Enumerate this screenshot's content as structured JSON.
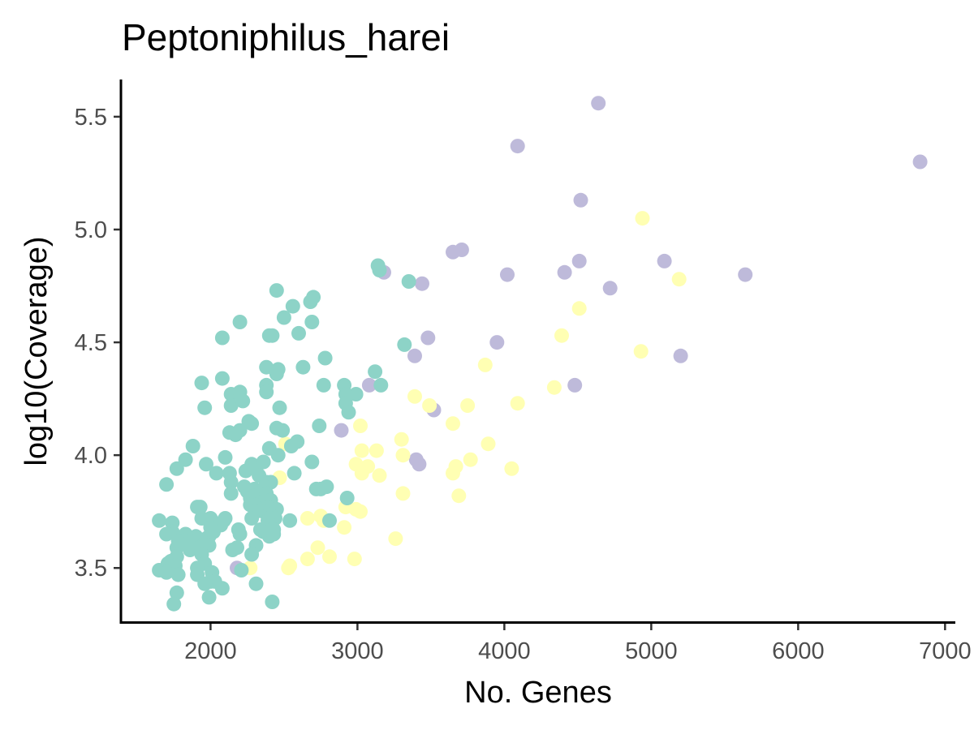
{
  "chart_data": {
    "type": "scatter",
    "title": "Peptoniphilus_harei",
    "xlabel": "No. Genes",
    "ylabel": "log10(Coverage)",
    "xlim": [
      1390,
      7070
    ],
    "ylim": [
      3.26,
      5.665
    ],
    "xticks": [
      2000,
      3000,
      4000,
      5000,
      6000,
      7000
    ],
    "yticks": [
      3.5,
      4.0,
      4.5,
      5.0,
      5.5
    ],
    "grid": false,
    "legend": "none",
    "colors": {
      "teal": "#8dd3c7",
      "yellow": "#ffffb3",
      "purple": "#bebada"
    },
    "series": [
      {
        "color": "#bebada",
        "points": [
          [
            4640,
            5.56
          ],
          [
            4090,
            5.37
          ],
          [
            6830,
            5.3
          ],
          [
            4520,
            5.13
          ],
          [
            3710,
            4.91
          ],
          [
            3650,
            4.9
          ],
          [
            5090,
            4.86
          ],
          [
            4510,
            4.86
          ],
          [
            4410,
            4.81
          ],
          [
            4020,
            4.8
          ],
          [
            5640,
            4.8
          ],
          [
            3180,
            4.81
          ],
          [
            3440,
            4.76
          ],
          [
            4720,
            4.74
          ],
          [
            3480,
            4.52
          ],
          [
            3950,
            4.5
          ],
          [
            3390,
            4.44
          ],
          [
            5200,
            4.44
          ],
          [
            4480,
            4.31
          ],
          [
            3080,
            4.31
          ],
          [
            3520,
            4.2
          ],
          [
            2890,
            4.11
          ],
          [
            3420,
            3.96
          ],
          [
            3400,
            3.98
          ],
          [
            2180,
            3.5
          ]
        ]
      },
      {
        "color": "#ffffb3",
        "points": [
          [
            4940,
            5.05
          ],
          [
            5190,
            4.78
          ],
          [
            4510,
            4.65
          ],
          [
            4390,
            4.53
          ],
          [
            4930,
            4.46
          ],
          [
            3870,
            4.4
          ],
          [
            4340,
            4.3
          ],
          [
            3390,
            4.26
          ],
          [
            4090,
            4.23
          ],
          [
            3750,
            4.22
          ],
          [
            3490,
            4.22
          ],
          [
            3650,
            4.14
          ],
          [
            3020,
            4.13
          ],
          [
            3300,
            4.07
          ],
          [
            3890,
            4.05
          ],
          [
            3130,
            4.02
          ],
          [
            3030,
            4.02
          ],
          [
            3310,
            4.0
          ],
          [
            3770,
            3.98
          ],
          [
            2990,
            3.96
          ],
          [
            3070,
            3.95
          ],
          [
            3670,
            3.95
          ],
          [
            4050,
            3.94
          ],
          [
            3650,
            3.92
          ],
          [
            3150,
            3.91
          ],
          [
            3030,
            3.92
          ],
          [
            2470,
            3.9
          ],
          [
            3310,
            3.83
          ],
          [
            3690,
            3.82
          ],
          [
            2920,
            3.77
          ],
          [
            2990,
            3.76
          ],
          [
            3020,
            3.75
          ],
          [
            2750,
            3.73
          ],
          [
            2660,
            3.72
          ],
          [
            2770,
            3.71
          ],
          [
            2910,
            3.68
          ],
          [
            3260,
            3.63
          ],
          [
            2730,
            3.59
          ],
          [
            2810,
            3.55
          ],
          [
            2660,
            3.54
          ],
          [
            2980,
            3.54
          ],
          [
            2540,
            3.51
          ],
          [
            2530,
            3.5
          ],
          [
            2270,
            3.5
          ],
          [
            2510,
            4.05
          ]
        ]
      },
      {
        "color": "#8dd3c7",
        "points": [
          [
            3140,
            4.84
          ],
          [
            3150,
            4.82
          ],
          [
            3350,
            4.77
          ],
          [
            2450,
            4.73
          ],
          [
            2700,
            4.7
          ],
          [
            2680,
            4.68
          ],
          [
            2560,
            4.66
          ],
          [
            2500,
            4.61
          ],
          [
            2200,
            4.59
          ],
          [
            2690,
            4.59
          ],
          [
            2600,
            4.54
          ],
          [
            2400,
            4.53
          ],
          [
            2420,
            4.53
          ],
          [
            2080,
            4.52
          ],
          [
            3320,
            4.49
          ],
          [
            2780,
            4.43
          ],
          [
            2380,
            4.39
          ],
          [
            2460,
            4.38
          ],
          [
            2630,
            4.39
          ],
          [
            2450,
            4.36
          ],
          [
            3120,
            4.37
          ],
          [
            1940,
            4.32
          ],
          [
            2080,
            4.34
          ],
          [
            2380,
            4.31
          ],
          [
            2770,
            4.31
          ],
          [
            2910,
            4.31
          ],
          [
            3160,
            4.31
          ],
          [
            2380,
            4.28
          ],
          [
            2140,
            4.27
          ],
          [
            2200,
            4.28
          ],
          [
            2990,
            4.27
          ],
          [
            2920,
            4.27
          ],
          [
            2140,
            4.22
          ],
          [
            2220,
            4.24
          ],
          [
            1960,
            4.21
          ],
          [
            2470,
            4.21
          ],
          [
            2920,
            4.23
          ],
          [
            2940,
            4.19
          ],
          [
            2260,
            4.15
          ],
          [
            2280,
            4.14
          ],
          [
            2740,
            4.13
          ],
          [
            2450,
            4.12
          ],
          [
            2130,
            4.1
          ],
          [
            2170,
            4.09
          ],
          [
            2490,
            4.11
          ],
          [
            2200,
            4.11
          ],
          [
            2590,
            4.06
          ],
          [
            1880,
            4.04
          ],
          [
            2400,
            4.03
          ],
          [
            2550,
            4.04
          ],
          [
            2100,
            3.99
          ],
          [
            1970,
            3.96
          ],
          [
            2280,
            3.96
          ],
          [
            2460,
            4.0
          ],
          [
            2690,
            3.97
          ],
          [
            2310,
            3.94
          ],
          [
            2360,
            3.97
          ],
          [
            1830,
            3.98
          ],
          [
            1770,
            3.94
          ],
          [
            2040,
            3.92
          ],
          [
            2130,
            3.92
          ],
          [
            2240,
            3.93
          ],
          [
            2570,
            3.92
          ],
          [
            2330,
            3.91
          ],
          [
            2380,
            3.88
          ],
          [
            2410,
            3.88
          ],
          [
            2300,
            3.85
          ],
          [
            2140,
            3.88
          ],
          [
            2370,
            3.86
          ],
          [
            2230,
            3.86
          ],
          [
            2250,
            3.84
          ],
          [
            2720,
            3.85
          ],
          [
            2750,
            3.85
          ],
          [
            2790,
            3.86
          ],
          [
            1700,
            3.87
          ],
          [
            2300,
            3.82
          ],
          [
            2270,
            3.81
          ],
          [
            2140,
            3.83
          ],
          [
            2930,
            3.81
          ],
          [
            2380,
            3.83
          ],
          [
            2410,
            3.8
          ],
          [
            2340,
            3.79
          ],
          [
            2300,
            3.78
          ],
          [
            2270,
            3.78
          ],
          [
            2390,
            3.77
          ],
          [
            2450,
            3.76
          ],
          [
            1910,
            3.77
          ],
          [
            1930,
            3.77
          ],
          [
            2360,
            3.75
          ],
          [
            2310,
            3.75
          ],
          [
            2420,
            3.73
          ],
          [
            2400,
            3.72
          ],
          [
            2440,
            3.72
          ],
          [
            2280,
            3.72
          ],
          [
            2100,
            3.72
          ],
          [
            2000,
            3.72
          ],
          [
            1940,
            3.72
          ],
          [
            2540,
            3.71
          ],
          [
            2390,
            3.71
          ],
          [
            2090,
            3.71
          ],
          [
            2070,
            3.69
          ],
          [
            1740,
            3.7
          ],
          [
            2000,
            3.68
          ],
          [
            2190,
            3.67
          ],
          [
            1650,
            3.71
          ],
          [
            1740,
            3.66
          ],
          [
            1700,
            3.65
          ],
          [
            2340,
            3.67
          ],
          [
            2360,
            3.66
          ],
          [
            2430,
            3.67
          ],
          [
            2200,
            3.65
          ],
          [
            1830,
            3.65
          ],
          [
            1820,
            3.62
          ],
          [
            1970,
            3.63
          ],
          [
            1900,
            3.64
          ],
          [
            1990,
            3.64
          ],
          [
            2020,
            3.66
          ],
          [
            1770,
            3.59
          ],
          [
            1780,
            3.62
          ],
          [
            1860,
            3.62
          ],
          [
            1960,
            3.61
          ],
          [
            1860,
            3.58
          ],
          [
            1920,
            3.59
          ],
          [
            1990,
            3.6
          ],
          [
            2180,
            3.59
          ],
          [
            2310,
            3.6
          ],
          [
            2150,
            3.58
          ],
          [
            2400,
            3.64
          ],
          [
            2430,
            3.65
          ],
          [
            2420,
            3.67
          ],
          [
            2280,
            3.56
          ],
          [
            1940,
            3.56
          ],
          [
            1770,
            3.55
          ],
          [
            1730,
            3.53
          ],
          [
            1710,
            3.52
          ],
          [
            1960,
            3.52
          ],
          [
            1760,
            3.51
          ],
          [
            1910,
            3.5
          ],
          [
            1650,
            3.49
          ],
          [
            1700,
            3.48
          ],
          [
            1780,
            3.47
          ],
          [
            1910,
            3.47
          ],
          [
            2010,
            3.48
          ],
          [
            2210,
            3.49
          ],
          [
            2000,
            3.44
          ],
          [
            2030,
            3.44
          ],
          [
            1960,
            3.43
          ],
          [
            2080,
            3.41
          ],
          [
            2310,
            3.43
          ],
          [
            1770,
            3.39
          ],
          [
            1990,
            3.37
          ],
          [
            1750,
            3.34
          ],
          [
            2420,
            3.35
          ],
          [
            2810,
            3.71
          ]
        ]
      }
    ]
  }
}
